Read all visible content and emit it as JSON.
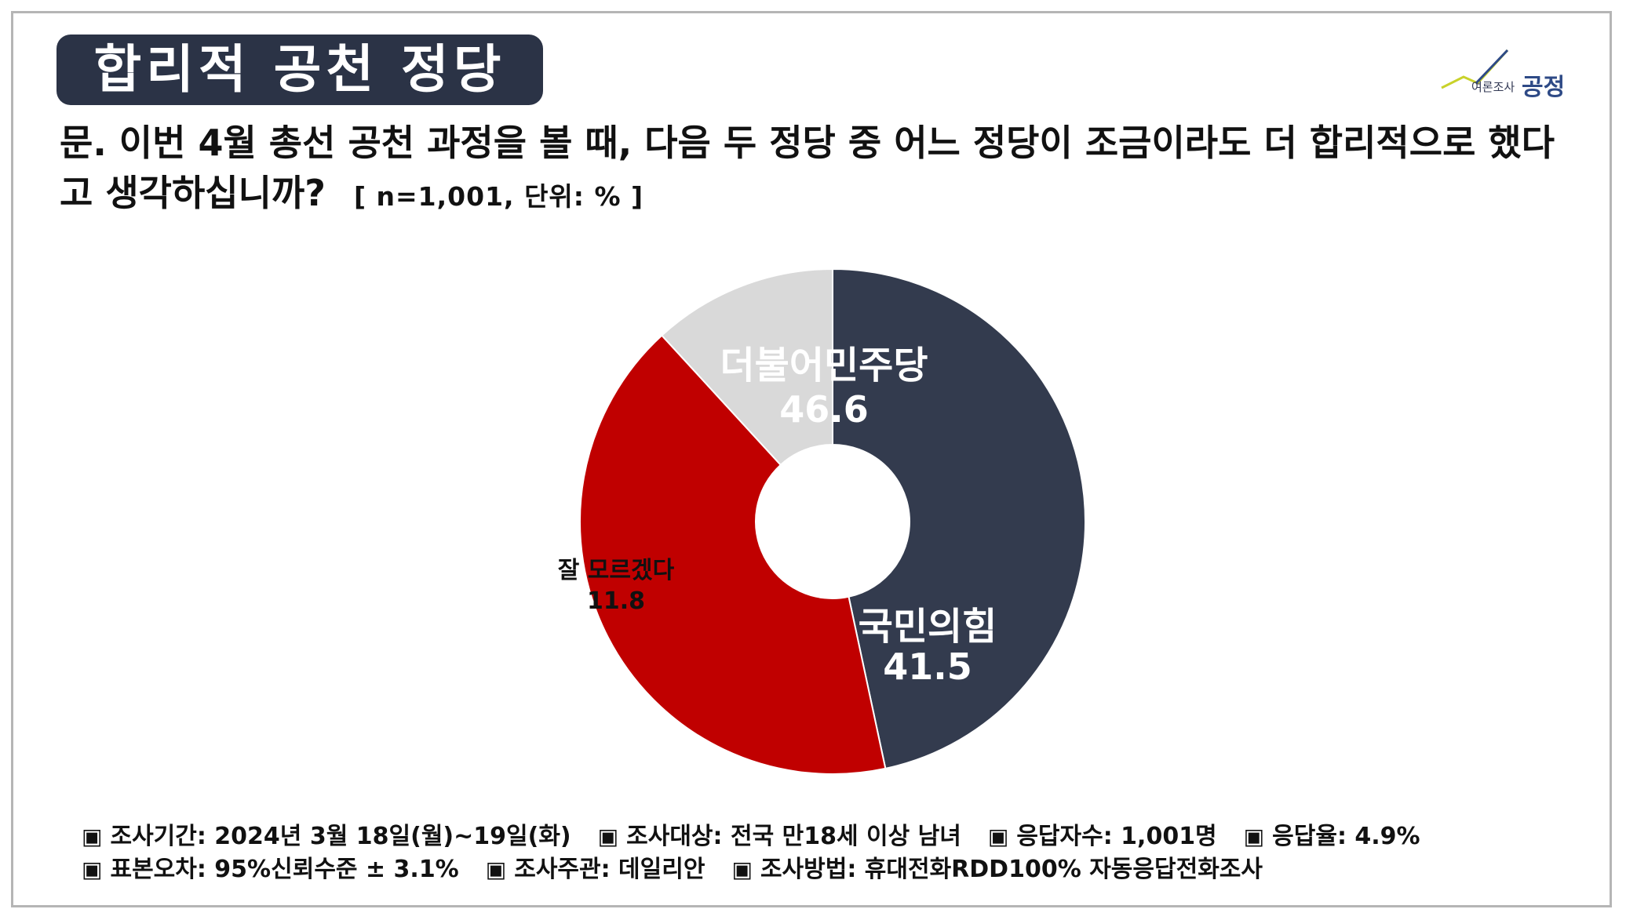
{
  "header": {
    "title": "합리적 공천 정당",
    "logo_small": "여론조사",
    "logo_big": "공정"
  },
  "question": {
    "text": "문. 이번 4월 총선 공천 과정을 볼 때, 다음 두 정당 중 어느 정당이 조금이라도 더 합리적으로 했다고 생각하십니까?",
    "meta": "[ n=1,001, 단위: % ]"
  },
  "chart_data": {
    "type": "pie",
    "donut": true,
    "categories": [
      "더불어민주당",
      "국민의힘",
      "잘 모르겠다"
    ],
    "values": [
      46.6,
      41.5,
      11.8
    ],
    "colors": [
      "#333b4e",
      "#c00000",
      "#d9d9d9"
    ],
    "label_colors": [
      "#ffffff",
      "#ffffff",
      "#111111"
    ],
    "start_angle_deg": 270,
    "title": "",
    "legend": "none"
  },
  "footer": {
    "bullet": "▣",
    "row1": [
      "조사기간: 2024년 3월 18일(월)~19일(화)",
      "조사대상: 전국 만18세 이상 남녀",
      "응답자수: 1,001명",
      "응답율: 4.9%"
    ],
    "row2": [
      "표본오차: 95%신뢰수준 ± 3.1%",
      "조사주관: 데일리안",
      "조사방법: 휴대전화RDD100% 자동응답전화조사"
    ]
  }
}
